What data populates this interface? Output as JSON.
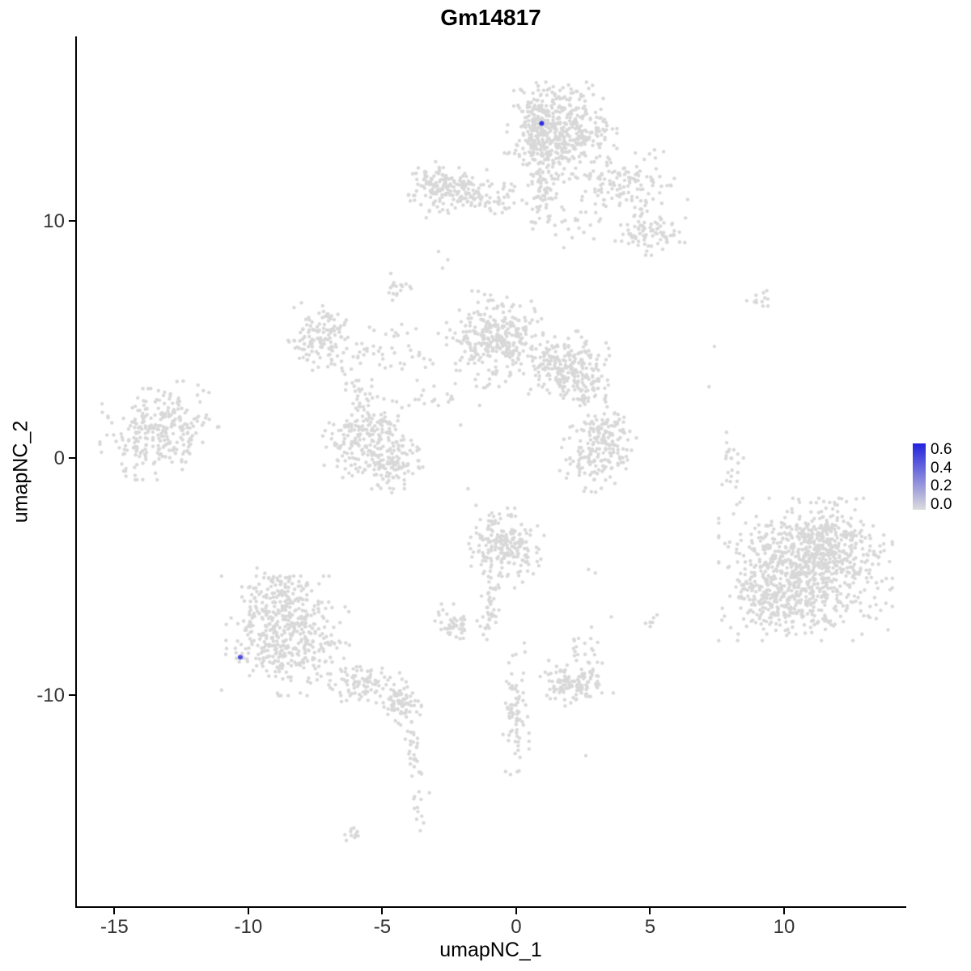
{
  "figure": {
    "title": "Gm14817"
  },
  "chart_data": {
    "type": "scatter",
    "title": "Gm14817",
    "xlabel": "umapNC_1",
    "ylabel": "umapNC_2",
    "xlim": [
      -16.4,
      14.5
    ],
    "ylim": [
      -18.9,
      17.7
    ],
    "x_ticks": [
      -15,
      -10,
      -5,
      0,
      5,
      10
    ],
    "y_ticks": [
      -10,
      0,
      10
    ],
    "grid": false,
    "legend_position": "right",
    "point_color": "#D8D8D8",
    "legend": {
      "labels": [
        "0.6",
        "0.4",
        "0.2",
        "0.0"
      ],
      "values": [
        0.6,
        0.4,
        0.2,
        0.0
      ],
      "min_color": "#DCDCDC",
      "max_color": "#2222DD",
      "vmax": 0.66
    },
    "highlighted_points": [
      {
        "x": 0.95,
        "y": 14.1,
        "value": 0.62
      },
      {
        "x": -10.3,
        "y": -8.4,
        "value": 0.5
      }
    ],
    "seed": 42,
    "clusters": [
      {
        "x": 1.6,
        "y": 13.8,
        "sx": 0.9,
        "sy": 0.85,
        "n": 420
      },
      {
        "x": 0.75,
        "y": 13.9,
        "sx": 0.35,
        "sy": 0.8,
        "n": 120
      },
      {
        "x": 0.95,
        "y": 11.3,
        "sx": 0.25,
        "sy": 0.75,
        "n": 70
      },
      {
        "x": 4.0,
        "y": 11.5,
        "sx": 1.0,
        "sy": 0.7,
        "n": 130
      },
      {
        "x": 5.0,
        "y": 9.5,
        "sx": 0.55,
        "sy": 0.4,
        "n": 80
      },
      {
        "x": 2.2,
        "y": 9.8,
        "sx": 0.5,
        "sy": 0.5,
        "n": 20
      },
      {
        "x": -0.35,
        "y": 10.9,
        "sx": 0.4,
        "sy": 0.3,
        "n": 15
      },
      {
        "x": -2.1,
        "y": 11.2,
        "sx": 0.8,
        "sy": 0.45,
        "n": 170
      },
      {
        "x": -3.1,
        "y": 11.7,
        "sx": 0.4,
        "sy": 0.35,
        "n": 50
      },
      {
        "x": -4.45,
        "y": 7.1,
        "sx": 0.22,
        "sy": 0.28,
        "n": 18
      },
      {
        "x": -0.8,
        "y": 5.0,
        "sx": 0.75,
        "sy": 0.85,
        "n": 300
      },
      {
        "x": 1.8,
        "y": 3.9,
        "sx": 0.7,
        "sy": 0.6,
        "n": 220
      },
      {
        "x": 2.6,
        "y": 2.9,
        "sx": 0.35,
        "sy": 0.4,
        "n": 50
      },
      {
        "x": -7.2,
        "y": 5.1,
        "sx": 0.6,
        "sy": 0.6,
        "n": 130
      },
      {
        "x": -4.6,
        "y": 4.5,
        "sx": 1.0,
        "sy": 0.6,
        "n": 45
      },
      {
        "x": -5.9,
        "y": 2.9,
        "sx": 0.3,
        "sy": 0.7,
        "n": 30
      },
      {
        "x": -5.9,
        "y": 0.6,
        "sx": 0.55,
        "sy": 0.65,
        "n": 130
      },
      {
        "x": -4.7,
        "y": -0.1,
        "sx": 0.55,
        "sy": 0.6,
        "n": 130
      },
      {
        "x": -5.2,
        "y": 1.3,
        "sx": 0.5,
        "sy": 0.3,
        "n": 40
      },
      {
        "x": -3.2,
        "y": 2.5,
        "sx": 0.8,
        "sy": 0.5,
        "n": 25
      },
      {
        "x": 2.6,
        "y": 0.0,
        "sx": 0.5,
        "sy": 0.6,
        "n": 80
      },
      {
        "x": 3.6,
        "y": 0.6,
        "sx": 0.45,
        "sy": 0.7,
        "n": 80
      },
      {
        "x": 3.0,
        "y": 1.3,
        "sx": 0.6,
        "sy": 0.3,
        "n": 40
      },
      {
        "x": -13.5,
        "y": 1.0,
        "sx": 0.85,
        "sy": 0.8,
        "n": 240
      },
      {
        "x": -12.3,
        "y": 1.8,
        "sx": 0.5,
        "sy": 0.6,
        "n": 30
      },
      {
        "x": 10.8,
        "y": -4.7,
        "sx": 1.35,
        "sy": 1.25,
        "n": 780
      },
      {
        "x": 9.6,
        "y": -5.8,
        "sx": 0.8,
        "sy": 0.7,
        "n": 150
      },
      {
        "x": 11.8,
        "y": -3.4,
        "sx": 0.8,
        "sy": 0.7,
        "n": 150
      },
      {
        "x": -8.6,
        "y": -7.5,
        "sx": 1.0,
        "sy": 1.05,
        "n": 430
      },
      {
        "x": -8.8,
        "y": -5.6,
        "sx": 0.6,
        "sy": 0.4,
        "n": 70
      },
      {
        "x": -5.7,
        "y": -9.5,
        "sx": 0.6,
        "sy": 0.4,
        "n": 90
      },
      {
        "x": -4.3,
        "y": -10.4,
        "sx": 0.35,
        "sy": 0.4,
        "n": 70
      },
      {
        "x": -3.85,
        "y": -12.2,
        "sx": 0.12,
        "sy": 0.7,
        "n": 25
      },
      {
        "x": -3.6,
        "y": -14.3,
        "sx": 0.15,
        "sy": 0.7,
        "n": 15
      },
      {
        "x": -6.1,
        "y": -15.8,
        "sx": 0.25,
        "sy": 0.2,
        "n": 12
      },
      {
        "x": -0.4,
        "y": -3.8,
        "sx": 0.6,
        "sy": 0.7,
        "n": 210
      },
      {
        "x": -1.0,
        "y": -6.4,
        "sx": 0.18,
        "sy": 0.7,
        "n": 35
      },
      {
        "x": -2.3,
        "y": -7.0,
        "sx": 0.35,
        "sy": 0.35,
        "n": 50
      },
      {
        "x": -0.05,
        "y": -10.6,
        "sx": 0.22,
        "sy": 1.3,
        "n": 75
      },
      {
        "x": 2.2,
        "y": -9.5,
        "sx": 0.6,
        "sy": 0.4,
        "n": 120
      },
      {
        "x": 2.5,
        "y": -7.9,
        "sx": 0.35,
        "sy": 0.5,
        "n": 20
      },
      {
        "x": 5.05,
        "y": -6.85,
        "sx": 0.18,
        "sy": 0.15,
        "n": 6
      },
      {
        "x": 8.05,
        "y": -0.2,
        "sx": 0.18,
        "sy": 0.9,
        "n": 25
      },
      {
        "x": 9.2,
        "y": 6.6,
        "sx": 0.3,
        "sy": 0.25,
        "n": 12
      }
    ],
    "extra_points": [
      [
        -2.9,
        8.7
      ],
      [
        -2.55,
        8.35
      ],
      [
        -2.75,
        8.0
      ],
      [
        7.4,
        4.7
      ],
      [
        7.2,
        3.0
      ],
      [
        -11.9,
        2.65
      ],
      [
        -11.15,
        1.3
      ],
      [
        3.55,
        -6.7
      ],
      [
        2.7,
        -4.7
      ],
      [
        2.95,
        -4.85
      ],
      [
        0.3,
        -7.8
      ],
      [
        2.6,
        -12.55
      ],
      [
        -1.8,
        -1.3
      ],
      [
        -1.5,
        -2.0
      ],
      [
        6.1,
        9.1
      ]
    ]
  }
}
